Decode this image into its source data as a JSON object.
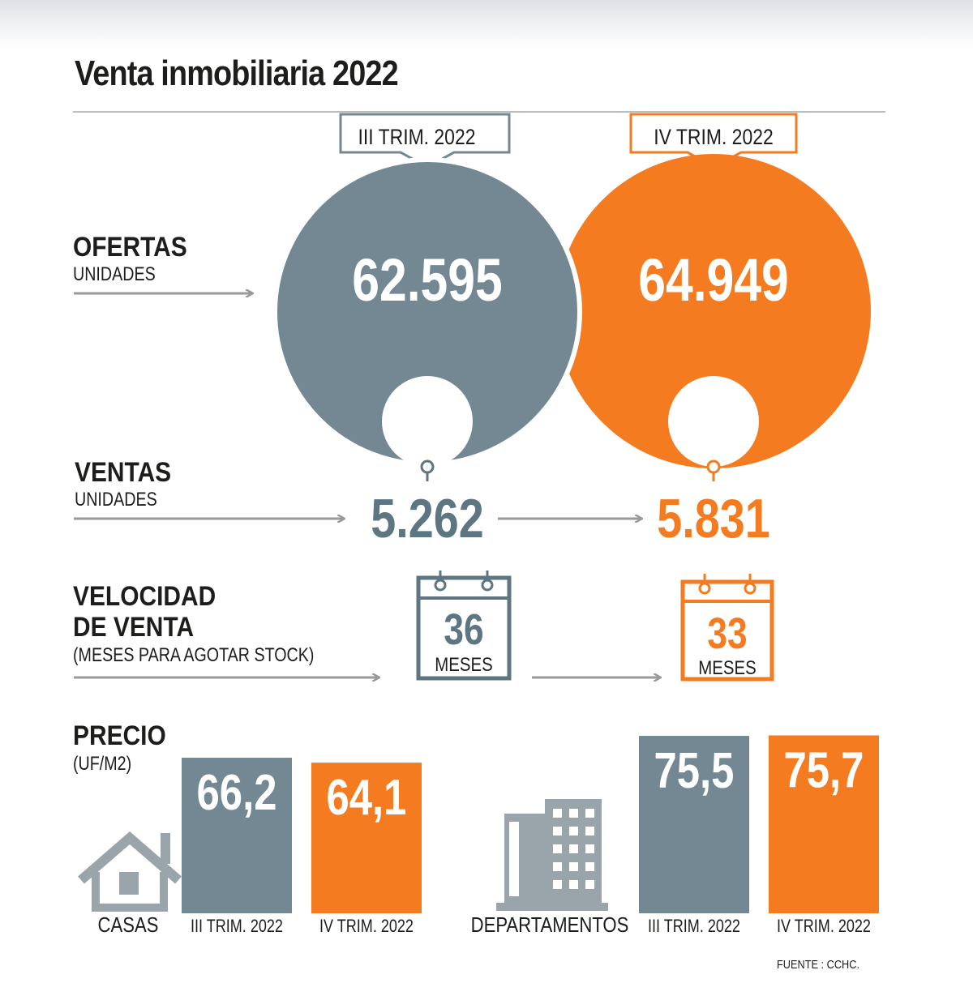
{
  "title": "Venta inmobiliaria 2022",
  "periods": [
    "III TRIM. 2022",
    "IV TRIM. 2022"
  ],
  "colors": {
    "gray": "#738893",
    "orange": "#f47b20",
    "arrow": "#9a9a9a",
    "dark": "#5e7582"
  },
  "sections": {
    "ofertas": {
      "label": "OFERTAS",
      "sublabel": "UNIDADES"
    },
    "ventas": {
      "label": "VENTAS",
      "sublabel": "UNIDADES"
    },
    "velocidad": {
      "label_line1": "VELOCIDAD",
      "label_line2": "DE VENTA",
      "sublabel": "(MESES PARA AGOTAR STOCK)",
      "unit": "MESES"
    },
    "precio": {
      "label": "PRECIO",
      "sublabel": "(UF/M2)"
    }
  },
  "chart_data": {
    "type": "bar",
    "ofertas": {
      "values": [
        "62.595",
        "64.949"
      ]
    },
    "ventas": {
      "values": [
        "5.262",
        "5.831"
      ]
    },
    "velocidad": {
      "values": [
        "36",
        "33"
      ]
    },
    "precio": {
      "groups": [
        {
          "name": "CASAS",
          "categories": [
            "III TRIM. 2022",
            "IV TRIM. 2022"
          ],
          "values": [
            66.2,
            64.1
          ],
          "labels": [
            "66,2",
            "64,1"
          ]
        },
        {
          "name": "DEPARTAMENTOS",
          "categories": [
            "III TRIM. 2022",
            "IV TRIM. 2022"
          ],
          "values": [
            75.5,
            75.7
          ],
          "labels": [
            "75,5",
            "75,7"
          ]
        }
      ]
    }
  },
  "source": "FUENTE : CCHC."
}
